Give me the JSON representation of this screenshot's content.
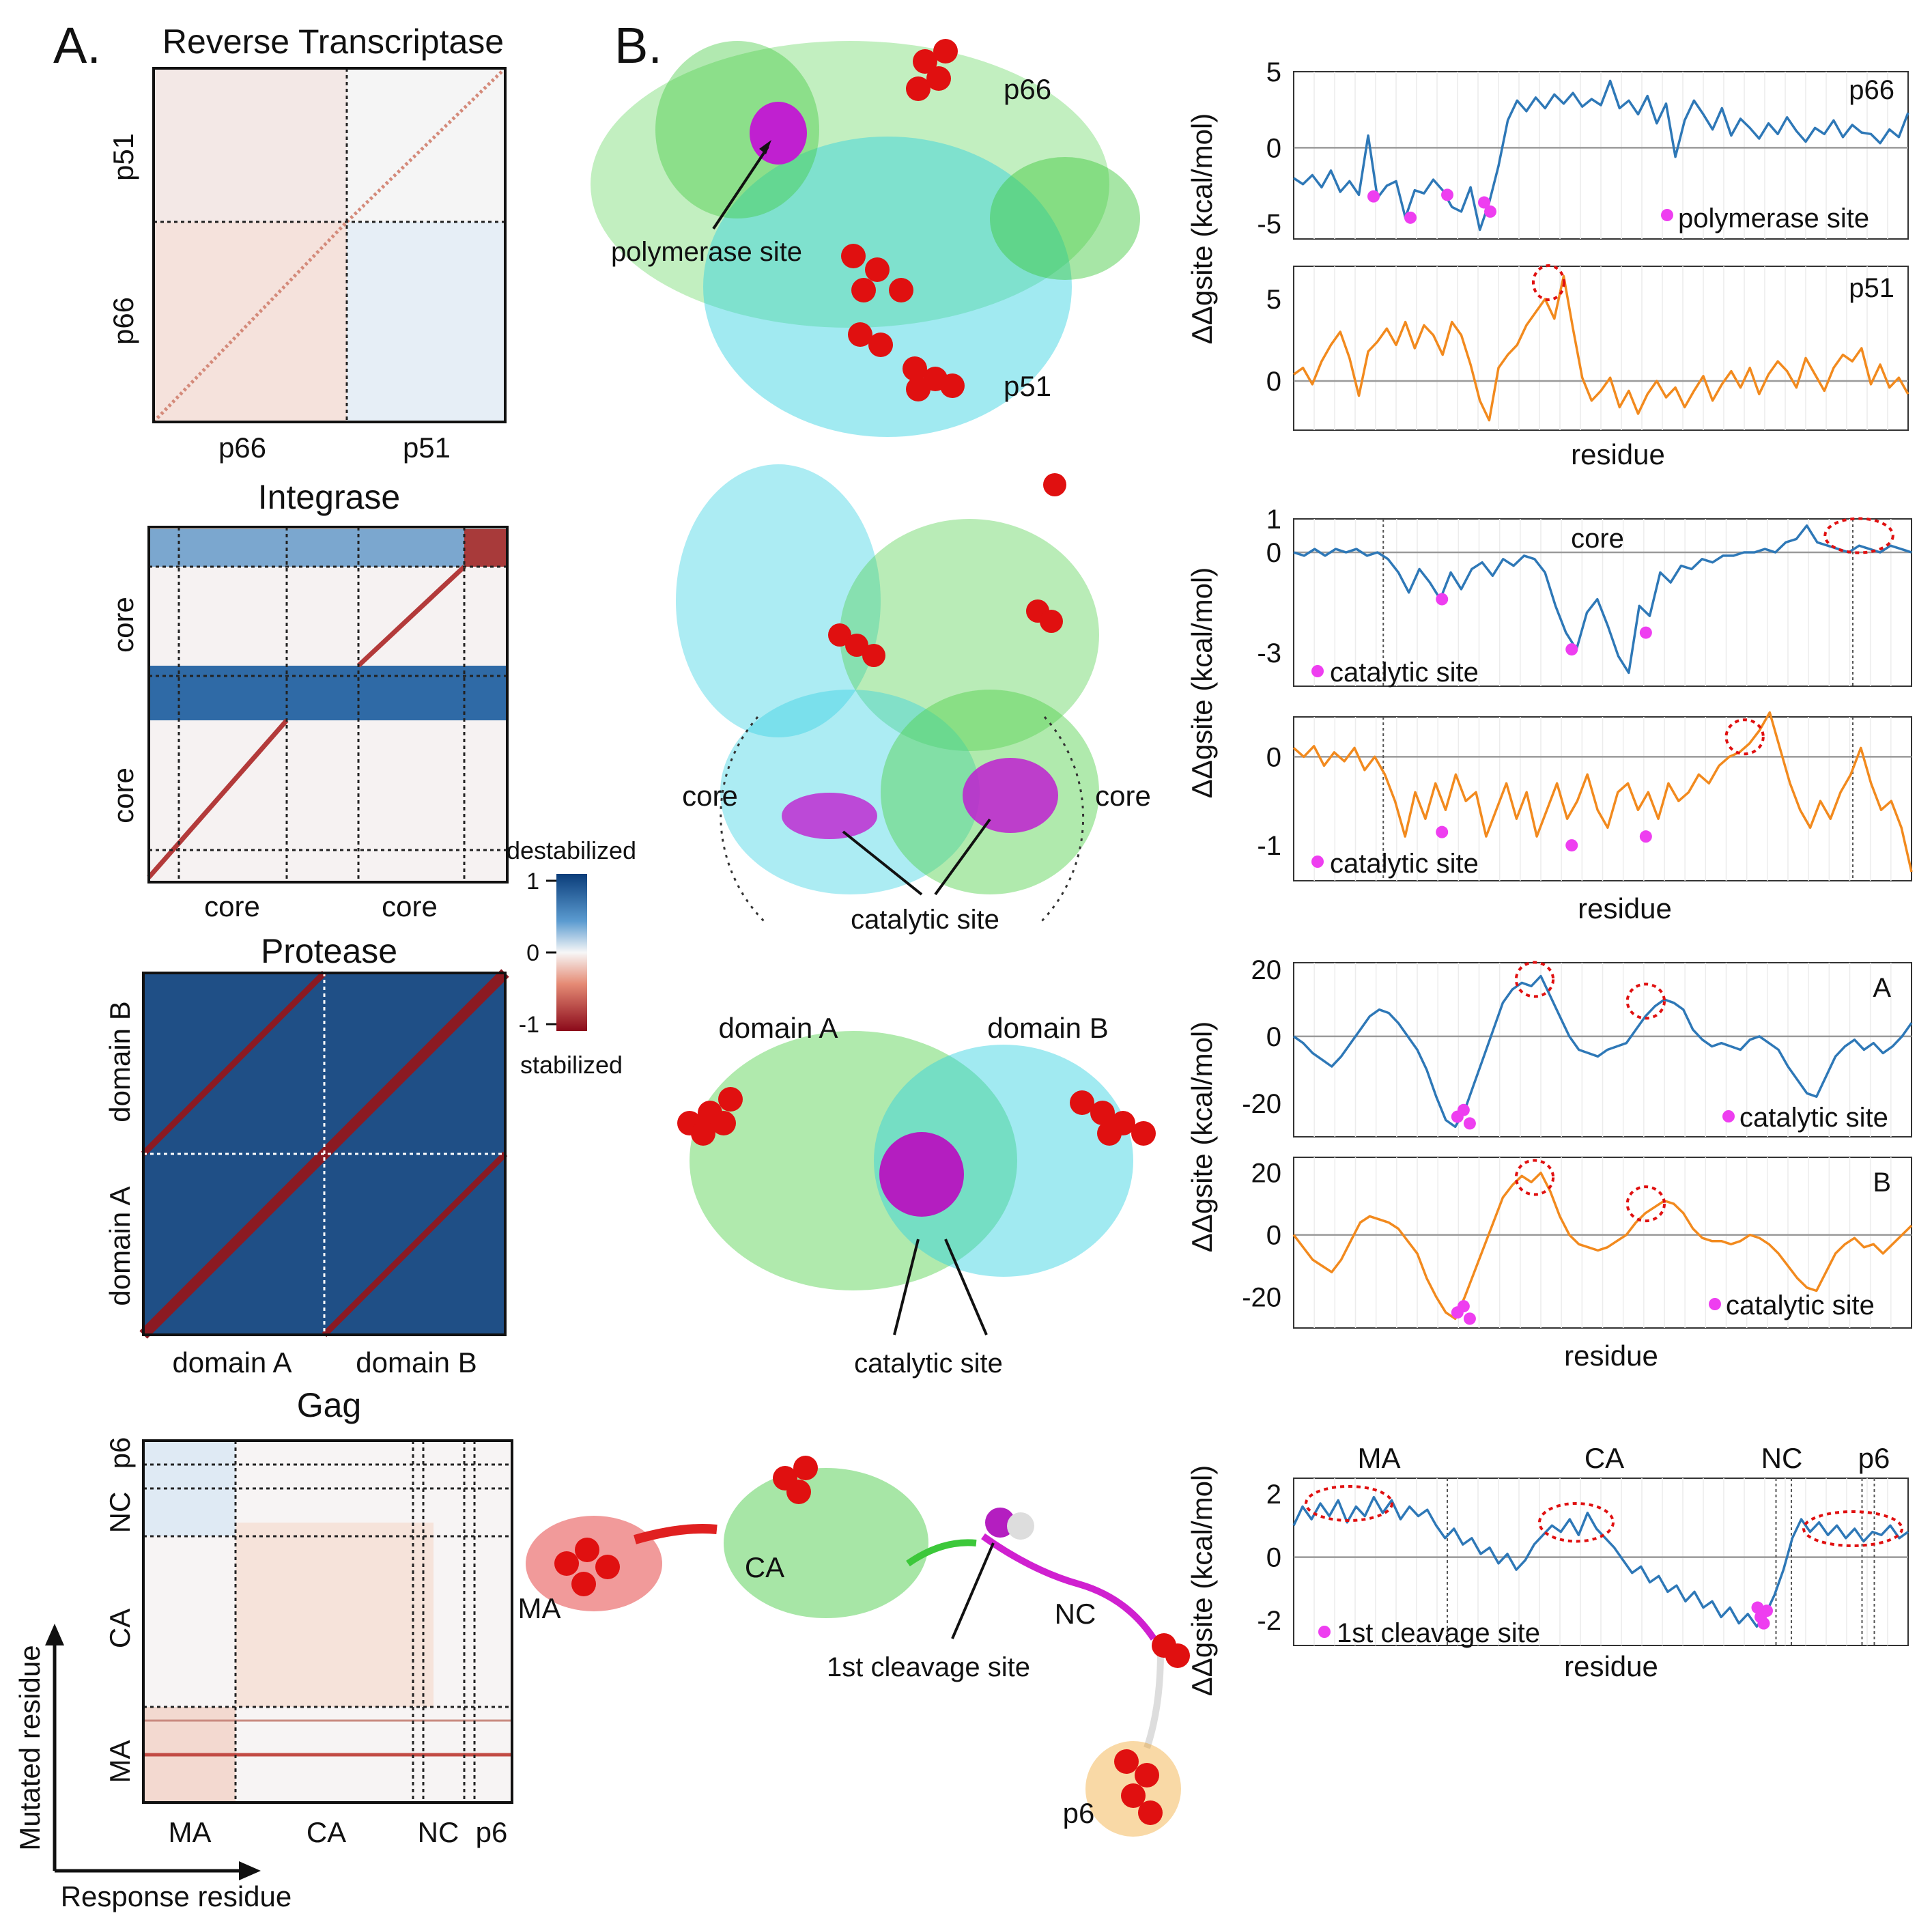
{
  "panel_labels": {
    "a": "A.",
    "b": "B."
  },
  "heatmaps": [
    {
      "title": "Reverse Transcriptase",
      "y_labels": [
        "p51",
        "p66"
      ],
      "x_labels": [
        "p66",
        "p51"
      ]
    },
    {
      "title": "Integrase",
      "y_labels": [
        "core",
        "core"
      ],
      "x_labels": [
        "core",
        "core"
      ]
    },
    {
      "title": "Protease",
      "y_labels": [
        "domain B",
        "domain A"
      ],
      "x_labels": [
        "domain A",
        "domain B"
      ]
    },
    {
      "title": "Gag",
      "y_labels": [
        "p6",
        "NC",
        "CA",
        "MA"
      ],
      "x_labels": [
        "MA",
        "CA",
        "NC",
        "p6"
      ]
    }
  ],
  "axes_arrows": {
    "y": "Mutated residue",
    "x": "Response residue"
  },
  "colorbar": {
    "top_label": "destabilized",
    "bottom_label": "stabilized",
    "ticks": [
      "1",
      "0",
      "-1"
    ],
    "colors": {
      "destabilized": "#0b3d7a",
      "neutral": "#f7f7f7",
      "stabilized": "#8b0a1a"
    }
  },
  "structures": {
    "rt": {
      "labels": [
        "p66",
        "p51",
        "polymerase site"
      ]
    },
    "integrase": {
      "labels": [
        "core",
        "core",
        "catalytic site"
      ]
    },
    "protease": {
      "labels": [
        "domain A",
        "domain B",
        "catalytic site"
      ]
    },
    "gag": {
      "labels": [
        "MA",
        "CA",
        "NC",
        "p6",
        "1st cleavage site"
      ]
    }
  },
  "ylabel": "ΔΔgsite (kcal/mol)",
  "xlabel": "residue",
  "legend_texts": [
    "polymerase site",
    "catalytic site",
    "catalytic site",
    "catalytic site",
    "catalytic site",
    "1st cleavage site"
  ],
  "chart_data": [
    {
      "type": "line",
      "id": "rt-p66",
      "tag": "p66",
      "series_color": "#2e78b7",
      "ylim": [
        -6,
        5
      ],
      "yticks": [
        5,
        0,
        -5
      ],
      "legend": "polymerase site",
      "values": [
        -2,
        -2.4,
        -1.8,
        -2.6,
        -1.5,
        -2.9,
        -2.2,
        -3.1,
        0.8,
        -3.3,
        -2.5,
        -2.2,
        -4.6,
        -2.8,
        -3,
        -2.1,
        -2.8,
        -3.9,
        -4.2,
        -2.6,
        -5.4,
        -3.6,
        -1.2,
        1.8,
        3.1,
        2.4,
        3.3,
        2.6,
        3.5,
        2.9,
        3.6,
        2.7,
        3.2,
        2.8,
        4.4,
        2.6,
        3.1,
        2.2,
        3.4,
        1.6,
        2.9,
        -0.6,
        1.8,
        3.1,
        2.2,
        1.2,
        2.6,
        0.8,
        1.9,
        1.3,
        0.6,
        1.6,
        0.9,
        2,
        1.1,
        0.4,
        1.3,
        0.9,
        1.8,
        0.7,
        1.5,
        1,
        0.9,
        0.3,
        1.2,
        0.7,
        2.3
      ]
    },
    {
      "type": "line",
      "id": "rt-p51",
      "tag": "p51",
      "series_color": "#f28a1e",
      "ylim": [
        -3,
        7
      ],
      "yticks": [
        5,
        0
      ],
      "legend": "",
      "values": [
        0.4,
        0.8,
        -0.2,
        1.2,
        2.2,
        3,
        1.4,
        -0.9,
        1.8,
        2.4,
        3.2,
        2.2,
        3.6,
        2,
        3.4,
        2.8,
        1.6,
        3.6,
        2.8,
        1,
        -1.2,
        -2.4,
        0.8,
        1.6,
        2.2,
        3.4,
        4.2,
        5,
        3.8,
        6.4,
        3.2,
        0.2,
        -1.2,
        -0.6,
        0.2,
        -1.6,
        -0.6,
        -2,
        -0.8,
        0,
        -1,
        -0.4,
        -1.6,
        -0.6,
        0.3,
        -1.2,
        -0.2,
        0.6,
        -0.4,
        0.8,
        -0.8,
        0.4,
        1.2,
        0.6,
        -0.4,
        1.4,
        0.4,
        -0.6,
        0.8,
        1.6,
        1.2,
        2,
        -0.2,
        1,
        -0.4,
        0.2,
        -0.8
      ]
    },
    {
      "type": "line",
      "id": "in-a",
      "tag": "core",
      "series_color": "#2e78b7",
      "ylim": [
        -4,
        1
      ],
      "yticks": [
        1,
        0,
        -3
      ],
      "legend": "catalytic site",
      "values": [
        0,
        -0.1,
        0.1,
        -0.1,
        0.1,
        0,
        0.1,
        -0.1,
        0,
        -0.2,
        -0.6,
        -1.2,
        -0.5,
        -0.9,
        -1.4,
        -0.6,
        -1.1,
        -0.5,
        -0.3,
        -0.7,
        -0.2,
        -0.4,
        -0.1,
        -0.2,
        -0.6,
        -1.6,
        -2.4,
        -2.9,
        -1.8,
        -1.4,
        -2.2,
        -3.1,
        -3.6,
        -1.6,
        -1.9,
        -0.6,
        -0.9,
        -0.4,
        -0.5,
        -0.2,
        -0.3,
        -0.1,
        -0.1,
        0,
        0,
        0.1,
        0,
        0.3,
        0.4,
        0.8,
        0.3,
        0.2,
        0.1,
        0,
        0.2,
        0.1,
        0,
        0.2,
        0.1,
        0
      ]
    },
    {
      "type": "line",
      "id": "in-b",
      "tag": "",
      "series_color": "#f28a1e",
      "ylim": [
        -1.4,
        0.45
      ],
      "yticks": [
        0,
        -1
      ],
      "legend": "catalytic site",
      "values": [
        0.1,
        0,
        0.12,
        -0.1,
        0.05,
        -0.05,
        0.1,
        -0.15,
        0,
        -0.2,
        -0.5,
        -0.9,
        -0.4,
        -0.7,
        -0.3,
        -0.6,
        -0.2,
        -0.5,
        -0.4,
        -0.9,
        -0.6,
        -0.3,
        -0.7,
        -0.4,
        -0.9,
        -0.6,
        -0.3,
        -0.7,
        -0.5,
        -0.2,
        -0.6,
        -0.8,
        -0.4,
        -0.3,
        -0.6,
        -0.4,
        -0.7,
        -0.3,
        -0.5,
        -0.4,
        -0.2,
        -0.3,
        -0.1,
        0,
        0.05,
        0.15,
        0.3,
        0.5,
        0.1,
        -0.3,
        -0.6,
        -0.8,
        -0.5,
        -0.7,
        -0.4,
        -0.2,
        0.1,
        -0.3,
        -0.6,
        -0.5,
        -0.8,
        -1.3
      ]
    },
    {
      "type": "line",
      "id": "pr-a",
      "tag": "A",
      "series_color": "#2e78b7",
      "ylim": [
        -30,
        22
      ],
      "yticks": [
        20,
        0,
        -20
      ],
      "legend": "catalytic site",
      "values": [
        0,
        -2,
        -5,
        -7,
        -9,
        -6,
        -2,
        2,
        6,
        8,
        7,
        4,
        0,
        -4,
        -10,
        -18,
        -25,
        -27,
        -22,
        -14,
        -6,
        2,
        10,
        14,
        16,
        15,
        18,
        12,
        6,
        0,
        -4,
        -5,
        -6,
        -4,
        -3,
        -2,
        2,
        6,
        9,
        11,
        10,
        8,
        2,
        -1,
        -3,
        -2,
        -3,
        -4,
        -1,
        0,
        -2,
        -4,
        -9,
        -13,
        -17,
        -18,
        -12,
        -6,
        -3,
        -1,
        -4,
        -2,
        -5,
        -3,
        0,
        4
      ]
    },
    {
      "type": "line",
      "id": "pr-b",
      "tag": "B",
      "series_color": "#f28a1e",
      "ylim": [
        -30,
        25
      ],
      "yticks": [
        20,
        0,
        -20
      ],
      "legend": "catalytic site",
      "values": [
        0,
        -4,
        -8,
        -10,
        -12,
        -8,
        -2,
        4,
        6,
        5,
        4,
        2,
        -2,
        -6,
        -14,
        -20,
        -25,
        -27,
        -20,
        -12,
        -4,
        4,
        12,
        16,
        19,
        17,
        20,
        14,
        6,
        0,
        -3,
        -4,
        -5,
        -4,
        -2,
        0,
        4,
        7,
        9,
        11,
        10,
        7,
        2,
        -1,
        -2,
        -2,
        -3,
        -2,
        0,
        -1,
        -3,
        -6,
        -10,
        -14,
        -17,
        -18,
        -12,
        -6,
        -3,
        -1,
        -4,
        -3,
        -6,
        -3,
        0,
        3
      ]
    },
    {
      "type": "line",
      "id": "gag",
      "tag": "",
      "series_color": "#2e78b7",
      "ylim": [
        -2.8,
        2.5
      ],
      "yticks": [
        2,
        0,
        -2
      ],
      "legend": "1st cleavage site",
      "values": [
        1,
        1.6,
        1.2,
        1.7,
        1.3,
        1.8,
        1.1,
        1.6,
        1.3,
        1.9,
        1.4,
        1.8,
        1.2,
        1.6,
        1.3,
        1.5,
        1,
        0.6,
        0.9,
        0.4,
        0.6,
        0.1,
        0.3,
        -0.2,
        0.1,
        -0.4,
        -0.1,
        0.4,
        0.7,
        1,
        0.8,
        1.2,
        0.7,
        1.4,
        0.9,
        0.6,
        0.3,
        -0.1,
        -0.5,
        -0.3,
        -0.8,
        -0.6,
        -1.1,
        -0.9,
        -1.4,
        -1.1,
        -1.6,
        -1.4,
        -1.9,
        -1.6,
        -2.1,
        -1.8,
        -2.2,
        -1.8,
        -1.2,
        -0.4,
        0.6,
        1.2,
        0.8,
        1.1,
        0.7,
        1,
        0.6,
        0.9,
        0.5,
        0.8,
        0.7,
        1,
        0.6,
        0.8
      ]
    }
  ],
  "gag_regions": [
    "MA",
    "CA",
    "NC",
    "p6"
  ],
  "line_tags": [
    "p66",
    "p51",
    "core",
    "A",
    "B"
  ]
}
